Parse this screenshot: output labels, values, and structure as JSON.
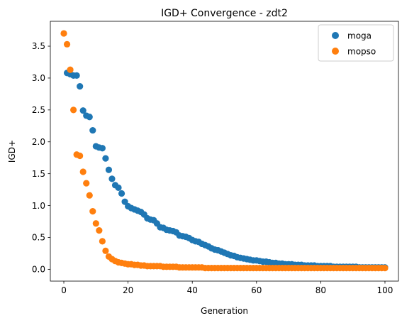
{
  "chart_data": {
    "type": "scatter",
    "title": "IGD+ Convergence - zdt2",
    "xlabel": "Generation",
    "ylabel": "IGD+",
    "xlim": [
      -4.2,
      104.2
    ],
    "ylim": [
      -0.185,
      3.89
    ],
    "xticks": [
      0,
      20,
      40,
      60,
      80,
      100
    ],
    "yticks": [
      0.0,
      0.5,
      1.0,
      1.5,
      2.0,
      2.5,
      3.0,
      3.5
    ],
    "xtick_labels": [
      "0",
      "20",
      "40",
      "60",
      "80",
      "100"
    ],
    "ytick_labels": [
      "0.0",
      "0.5",
      "1.0",
      "1.5",
      "2.0",
      "2.5",
      "3.0",
      "3.5"
    ],
    "grid": false,
    "legend": "top-right",
    "series": [
      {
        "name": "moga",
        "color": "#1f77b4",
        "x": [
          1,
          2,
          3,
          4,
          5,
          6,
          7,
          8,
          9,
          10,
          11,
          12,
          13,
          14,
          15,
          16,
          17,
          18,
          19,
          20,
          21,
          22,
          23,
          24,
          25,
          26,
          27,
          28,
          29,
          30,
          31,
          32,
          33,
          34,
          35,
          36,
          37,
          38,
          39,
          40,
          41,
          42,
          43,
          44,
          45,
          46,
          47,
          48,
          49,
          50,
          51,
          52,
          53,
          54,
          55,
          56,
          57,
          58,
          59,
          60,
          61,
          62,
          63,
          64,
          65,
          66,
          67,
          68,
          69,
          70,
          71,
          72,
          73,
          74,
          75,
          76,
          77,
          78,
          79,
          80,
          81,
          82,
          83,
          84,
          85,
          86,
          87,
          88,
          89,
          90,
          91,
          92,
          93,
          94,
          95,
          96,
          97,
          98,
          99,
          100
        ],
        "y": [
          3.08,
          3.06,
          3.04,
          3.04,
          2.87,
          2.49,
          2.41,
          2.39,
          2.18,
          1.93,
          1.91,
          1.9,
          1.74,
          1.56,
          1.42,
          1.32,
          1.28,
          1.19,
          1.06,
          0.99,
          0.96,
          0.94,
          0.92,
          0.9,
          0.86,
          0.8,
          0.78,
          0.77,
          0.72,
          0.66,
          0.65,
          0.62,
          0.61,
          0.6,
          0.58,
          0.53,
          0.52,
          0.51,
          0.49,
          0.46,
          0.44,
          0.43,
          0.4,
          0.38,
          0.36,
          0.33,
          0.31,
          0.3,
          0.28,
          0.26,
          0.24,
          0.22,
          0.21,
          0.19,
          0.18,
          0.17,
          0.16,
          0.15,
          0.14,
          0.14,
          0.13,
          0.12,
          0.12,
          0.11,
          0.1,
          0.1,
          0.09,
          0.09,
          0.08,
          0.08,
          0.08,
          0.07,
          0.07,
          0.07,
          0.06,
          0.06,
          0.06,
          0.06,
          0.05,
          0.05,
          0.05,
          0.05,
          0.05,
          0.04,
          0.04,
          0.04,
          0.04,
          0.04,
          0.04,
          0.04,
          0.04,
          0.03,
          0.03,
          0.03,
          0.03,
          0.03,
          0.03,
          0.03,
          0.03,
          0.03
        ]
      },
      {
        "name": "mopso",
        "color": "#ff7f0e",
        "x": [
          0,
          1,
          2,
          3,
          4,
          5,
          6,
          7,
          8,
          9,
          10,
          11,
          12,
          13,
          14,
          15,
          16,
          17,
          18,
          19,
          20,
          21,
          22,
          23,
          24,
          25,
          26,
          27,
          28,
          29,
          30,
          31,
          32,
          33,
          34,
          35,
          36,
          37,
          38,
          39,
          40,
          41,
          42,
          43,
          44,
          45,
          46,
          47,
          48,
          49,
          50,
          51,
          52,
          53,
          54,
          55,
          56,
          57,
          58,
          59,
          60,
          61,
          62,
          63,
          64,
          65,
          66,
          67,
          68,
          69,
          70,
          71,
          72,
          73,
          74,
          75,
          76,
          77,
          78,
          79,
          80,
          81,
          82,
          83,
          84,
          85,
          86,
          87,
          88,
          89,
          90,
          91,
          92,
          93,
          94,
          95,
          96,
          97,
          98,
          99,
          100
        ],
        "y": [
          3.7,
          3.53,
          3.13,
          2.5,
          1.8,
          1.78,
          1.53,
          1.35,
          1.16,
          0.91,
          0.72,
          0.61,
          0.44,
          0.29,
          0.2,
          0.16,
          0.13,
          0.11,
          0.1,
          0.09,
          0.08,
          0.08,
          0.07,
          0.07,
          0.06,
          0.06,
          0.05,
          0.05,
          0.05,
          0.05,
          0.05,
          0.04,
          0.04,
          0.04,
          0.04,
          0.04,
          0.03,
          0.03,
          0.03,
          0.03,
          0.03,
          0.03,
          0.03,
          0.03,
          0.02,
          0.02,
          0.02,
          0.02,
          0.02,
          0.02,
          0.02,
          0.02,
          0.02,
          0.02,
          0.02,
          0.02,
          0.02,
          0.02,
          0.02,
          0.02,
          0.02,
          0.02,
          0.02,
          0.02,
          0.02,
          0.02,
          0.02,
          0.02,
          0.02,
          0.02,
          0.02,
          0.02,
          0.02,
          0.02,
          0.02,
          0.02,
          0.02,
          0.02,
          0.02,
          0.02,
          0.02,
          0.02,
          0.02,
          0.02,
          0.02,
          0.02,
          0.02,
          0.02,
          0.02,
          0.02,
          0.02,
          0.02,
          0.02,
          0.02,
          0.02,
          0.02,
          0.02,
          0.02,
          0.02,
          0.02,
          0.02
        ]
      }
    ]
  }
}
